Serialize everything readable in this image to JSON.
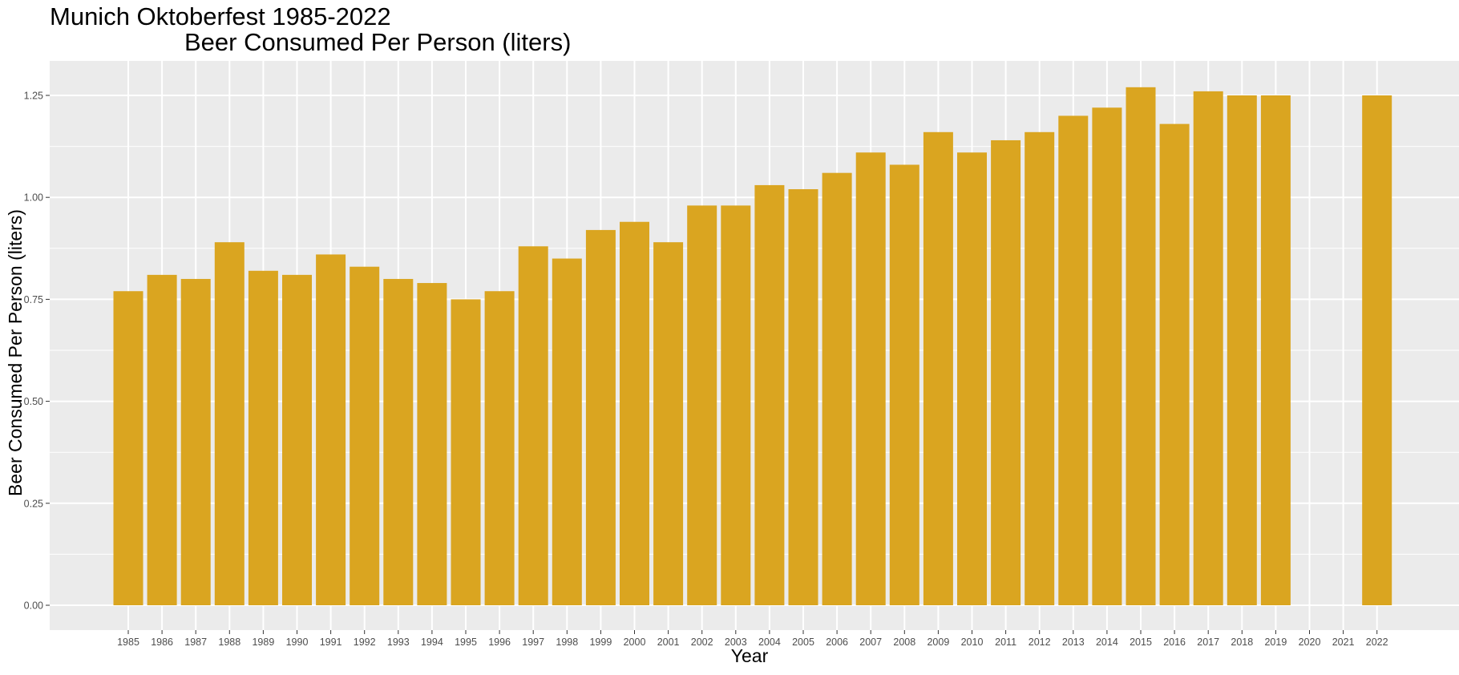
{
  "chart_data": {
    "type": "bar",
    "title_line1": "Munich Oktoberfest 1985-2022",
    "title_line2": "Beer Consumed Per Person (liters)",
    "xlabel": "Year",
    "ylabel": "Beer Consumed Per Person (liters)",
    "ylim": [
      0,
      1.25
    ],
    "yticks": [
      "0.00",
      "0.25",
      "0.50",
      "0.75",
      "1.00",
      "1.25"
    ],
    "grid": true,
    "categories": [
      "1985",
      "1986",
      "1987",
      "1988",
      "1989",
      "1990",
      "1991",
      "1992",
      "1993",
      "1994",
      "1995",
      "1996",
      "1997",
      "1998",
      "1999",
      "2000",
      "2001",
      "2002",
      "2003",
      "2004",
      "2005",
      "2006",
      "2007",
      "2008",
      "2009",
      "2010",
      "2011",
      "2012",
      "2013",
      "2014",
      "2015",
      "2016",
      "2017",
      "2018",
      "2019",
      "2020",
      "2021",
      "2022"
    ],
    "values": [
      0.77,
      0.81,
      0.8,
      0.89,
      0.82,
      0.81,
      0.86,
      0.83,
      0.8,
      0.79,
      0.75,
      0.77,
      0.88,
      0.85,
      0.92,
      0.94,
      0.89,
      0.98,
      0.98,
      1.03,
      1.02,
      1.06,
      1.11,
      1.08,
      1.16,
      1.11,
      1.14,
      1.16,
      1.2,
      1.22,
      1.27,
      1.18,
      1.26,
      1.25,
      1.25,
      null,
      null,
      1.25
    ],
    "bar_color": "#DAA520",
    "panel_color": "#EBEBEB",
    "grid_color": "#FFFFFF"
  }
}
